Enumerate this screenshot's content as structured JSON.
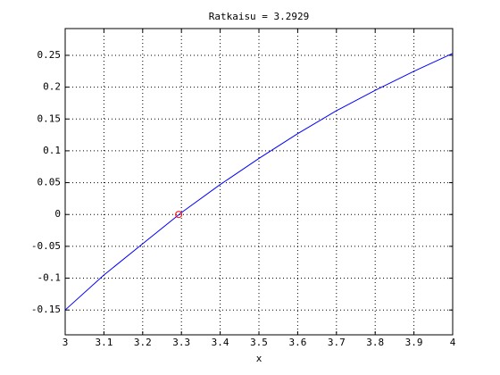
{
  "chart_data": {
    "type": "line",
    "title": "Ratkaisu = 3.2929",
    "x_label": "x",
    "x": [
      3,
      3.1,
      3.2,
      3.3,
      3.4,
      3.5,
      3.6,
      3.7,
      3.8,
      3.9,
      4
    ],
    "series": [
      {
        "color": "#0000ff",
        "values": [
          -0.15,
          -0.095,
          -0.046,
          0.003,
          0.047,
          0.088,
          0.127,
          0.163,
          0.195,
          0.225,
          0.253
        ]
      }
    ],
    "points": {
      "color": "#ff0000",
      "x": [
        3.2929
      ],
      "values": [
        0
      ]
    },
    "xlim": [
      3,
      4
    ],
    "ylim": [
      -0.189,
      0.292
    ],
    "xticks": [
      3,
      3.1,
      3.2,
      3.3,
      3.4,
      3.5,
      3.6,
      3.7,
      3.8,
      3.9,
      4
    ],
    "yticks": [
      -0.15,
      -0.1,
      -0.05,
      0,
      0.05,
      0.1,
      0.15,
      0.2,
      0.25
    ],
    "grid": true
  }
}
